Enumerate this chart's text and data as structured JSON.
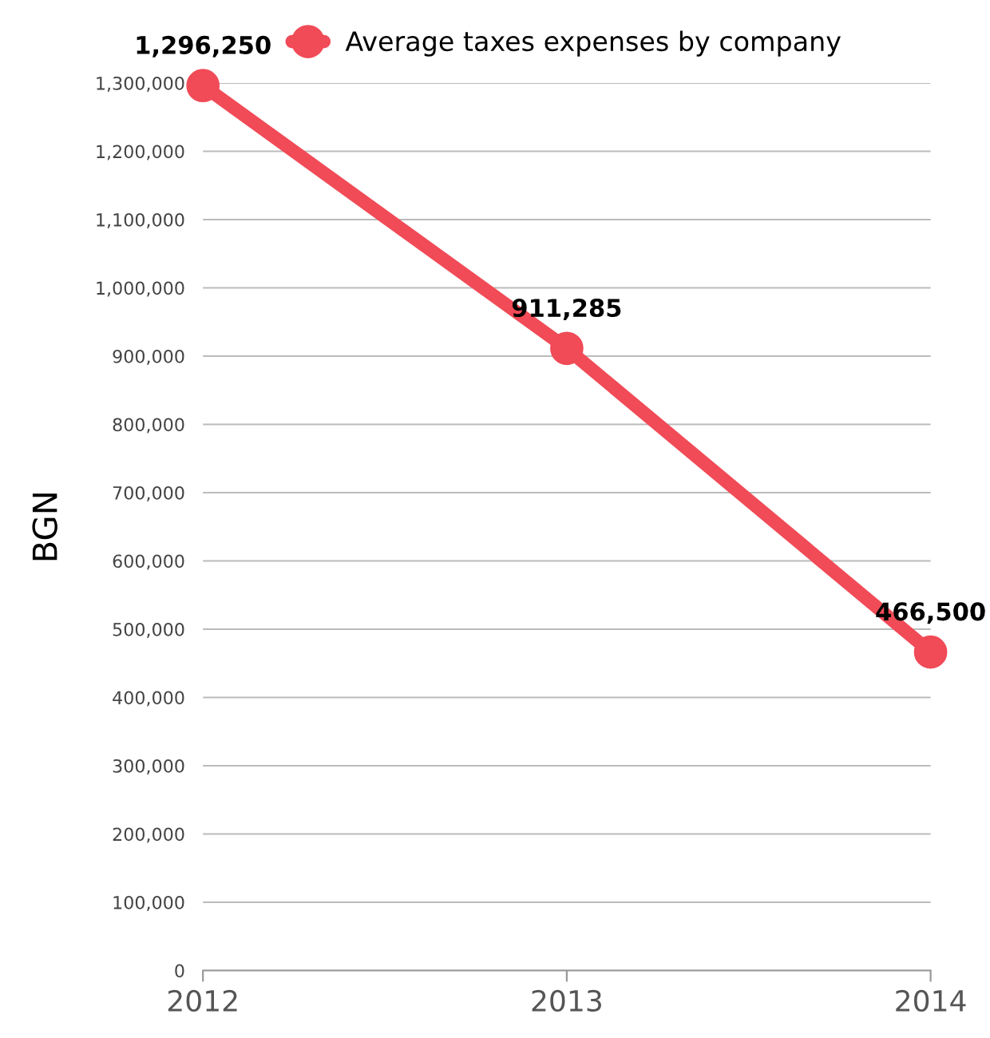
{
  "chart_data": {
    "type": "line",
    "ylabel": "BGN",
    "categories": [
      "2012",
      "2013",
      "2014"
    ],
    "series": [
      {
        "name": "Average taxes expenses by company",
        "color": "#f04b57",
        "values": [
          1296250,
          911285,
          466500
        ]
      }
    ],
    "ylim": [
      0,
      1300000
    ],
    "yticks": [
      {
        "value": 0,
        "label": "0"
      },
      {
        "value": 100000,
        "label": "100,000"
      },
      {
        "value": 200000,
        "label": "200,000"
      },
      {
        "value": 300000,
        "label": "300,000"
      },
      {
        "value": 400000,
        "label": "400,000"
      },
      {
        "value": 500000,
        "label": "500,000"
      },
      {
        "value": 600000,
        "label": "600,000"
      },
      {
        "value": 700000,
        "label": "700,000"
      },
      {
        "value": 800000,
        "label": "800,000"
      },
      {
        "value": 900000,
        "label": "900,000"
      },
      {
        "value": 1000000,
        "label": "1,000,000"
      },
      {
        "value": 1100000,
        "label": "1,100,000"
      },
      {
        "value": 1200000,
        "label": "1,200,000"
      },
      {
        "value": 1300000,
        "label": "1,300,000"
      }
    ],
    "value_labels": [
      "1,296,250",
      "911,285",
      "466,500"
    ],
    "grid": "y",
    "legend": "top",
    "marker": "circle",
    "line_style": "solid"
  }
}
